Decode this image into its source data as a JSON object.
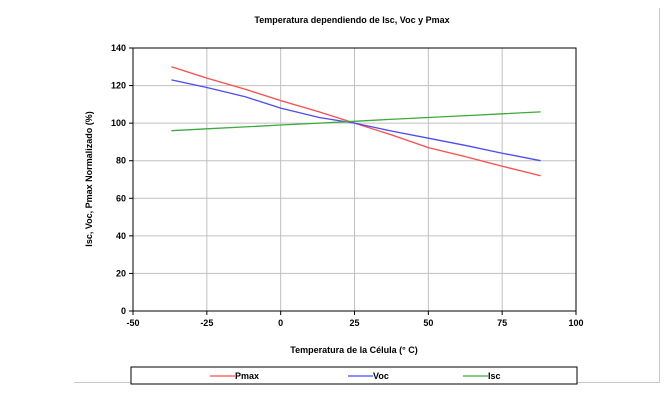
{
  "chart_data": {
    "type": "line",
    "title": "Temperatura dependiendo de Isc, Voc y Pmax",
    "xlabel": "Temperatura de la Célula (° C)",
    "ylabel": "Isc, Voc, Pmax Normalizado (%)",
    "xlim": [
      -50,
      100
    ],
    "ylim": [
      0,
      140
    ],
    "xticks": [
      -50,
      -25,
      0,
      25,
      50,
      75,
      100
    ],
    "yticks": [
      0,
      20,
      40,
      60,
      80,
      100,
      120,
      140
    ],
    "grid": "vertical and horizontal",
    "legend_position": "bottom",
    "series": [
      {
        "name": "Pmax",
        "color": "#ff4c4c",
        "x": [
          -37,
          -25,
          -12,
          0,
          13,
          25,
          37,
          50,
          63,
          75,
          88
        ],
        "y": [
          130,
          124,
          118,
          112,
          106,
          100,
          94,
          87,
          82,
          77,
          72
        ]
      },
      {
        "name": "Voc",
        "color": "#4b4bff",
        "x": [
          -37,
          -25,
          -12,
          0,
          13,
          25,
          37,
          50,
          63,
          75,
          88
        ],
        "y": [
          123,
          119,
          114,
          108,
          103,
          100,
          96,
          92,
          88,
          84,
          80
        ]
      },
      {
        "name": "Isc",
        "color": "#3caa3c",
        "x": [
          -37,
          -25,
          -12,
          0,
          13,
          25,
          37,
          50,
          63,
          75,
          88
        ],
        "y": [
          96,
          97,
          98,
          99,
          100,
          101,
          102,
          103,
          104,
          105,
          106
        ]
      }
    ]
  }
}
